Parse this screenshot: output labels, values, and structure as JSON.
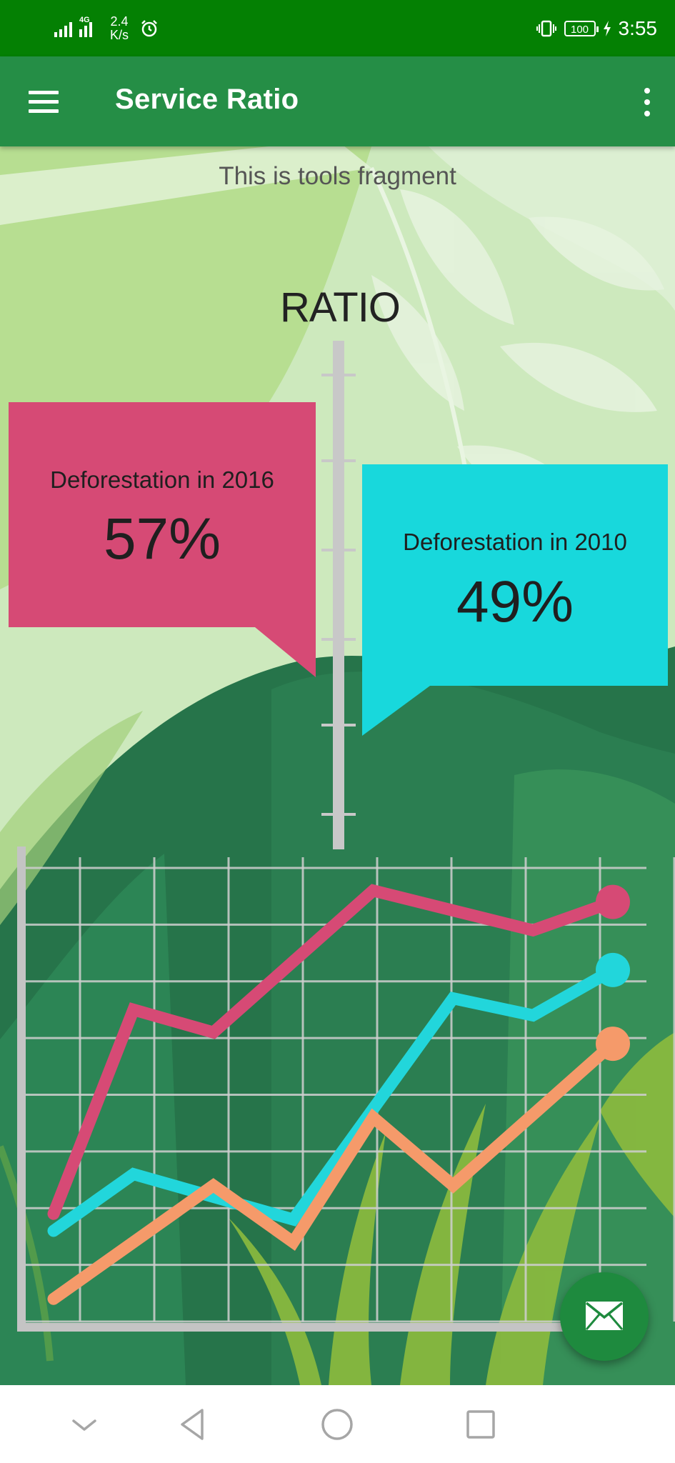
{
  "status_bar": {
    "network_speed": "2.4\nK/s",
    "speed_value": "2.4",
    "speed_unit": "K/s",
    "network_type": "4G",
    "battery_level": "100",
    "time": "3:55",
    "icons": [
      "signal-icon",
      "signal-4g-icon",
      "alarm-icon",
      "vibrate-icon",
      "battery-icon",
      "charging-icon"
    ]
  },
  "app_bar": {
    "title": "Service Ratio",
    "menu_icon": "hamburger-menu-icon",
    "overflow_icon": "more-vertical-icon"
  },
  "main": {
    "fragment_text": "This is tools fragment",
    "infographic": {
      "heading": "RATIO",
      "callouts": [
        {
          "label": "Deforestation in 2016",
          "value": "57%",
          "color": "#D64A75"
        },
        {
          "label": "Deforestation in 2010",
          "value": "49%",
          "color": "#18D8DC"
        }
      ]
    }
  },
  "chart_data": {
    "type": "line",
    "title": "",
    "xlabel": "",
    "ylabel": "",
    "x": [
      1,
      2,
      3,
      4,
      5,
      6,
      7,
      8
    ],
    "ylim": [
      0,
      8
    ],
    "grid": true,
    "series": [
      {
        "color": "#D64A75",
        "values": [
          1.9,
          5.5,
          5.1,
          null,
          7.6,
          null,
          6.9,
          7.4
        ]
      },
      {
        "color": "#22D6DB",
        "values": [
          1.6,
          2.6,
          null,
          1.8,
          null,
          5.7,
          5.4,
          6.2
        ]
      },
      {
        "color": "#F59A6A",
        "values": [
          0.4,
          null,
          2.4,
          1.4,
          3.6,
          2.4,
          null,
          4.9
        ]
      }
    ]
  },
  "fab": {
    "icon": "mail-icon"
  },
  "nav_bar": {
    "buttons": [
      "collapse-icon",
      "back-icon",
      "home-icon",
      "recents-icon"
    ]
  },
  "colors": {
    "status_bar": "#048003",
    "app_bar": "#258E46",
    "fab": "#1E8A3E"
  }
}
